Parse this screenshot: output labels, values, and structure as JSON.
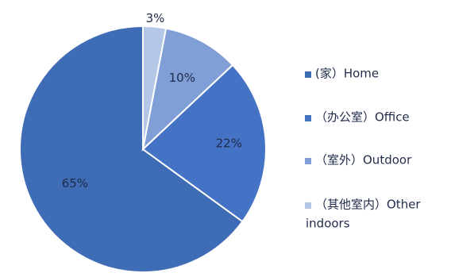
{
  "chart_data": {
    "type": "pie",
    "title": "",
    "slices": [
      {
        "label": "65%",
        "value": 65,
        "color": "#3e6db5"
      },
      {
        "label": "22%",
        "value": 22,
        "color": "#4472c4"
      },
      {
        "label": "10%",
        "value": 10,
        "color": "#7f9fd6"
      },
      {
        "label": "3%",
        "value": 3,
        "color": "#b4c7e7"
      }
    ],
    "legend": {
      "placement": "right",
      "entries": [
        {
          "lines": [
            "(家）Home"
          ],
          "color": "#3e6db5"
        },
        {
          "lines": [
            "（办公室）Office"
          ],
          "color": "#4472c4"
        },
        {
          "lines": [
            "（室外）Outdoor"
          ],
          "color": "#7f9fd6"
        },
        {
          "lines": [
            "（其他室内）Other",
            "indoors"
          ],
          "color": "#b4c7e7"
        }
      ]
    }
  }
}
